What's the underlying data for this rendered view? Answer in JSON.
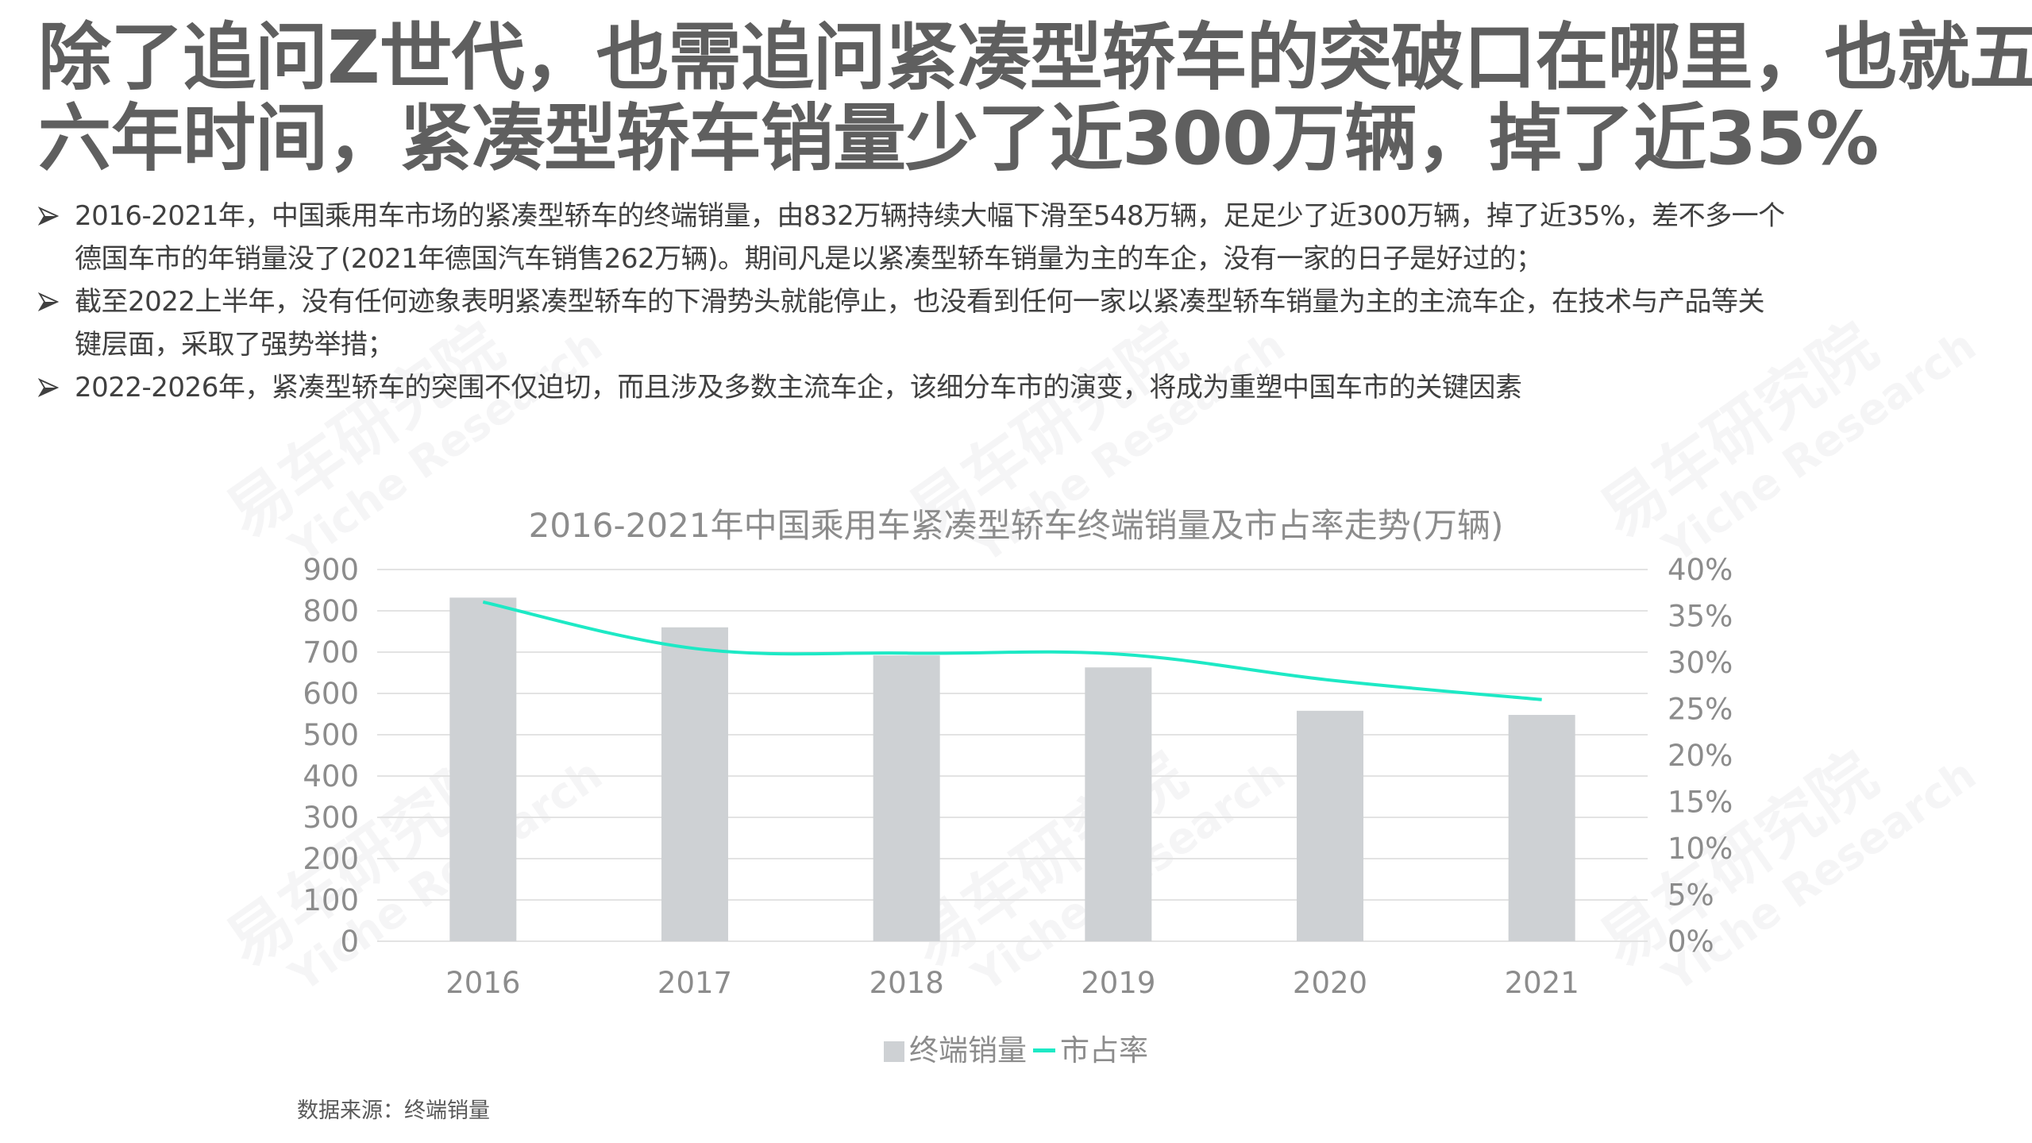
{
  "title": {
    "line1": "除了追问Z世代，也需追问紧凑型轿车的突破口在哪里，也就五",
    "line2": "六年时间，紧凑型轿车销量少了近300万辆，掉了近35%"
  },
  "bullets": [
    {
      "lines": [
        "2016-2021年，中国乘用车市场的紧凑型轿车的终端销量，由832万辆持续大幅下滑至548万辆，足足少了近300万辆，掉了近35%，差不多一个",
        "德国车市的年销量没了(2021年德国汽车销售262万辆)。期间凡是以紧凑型轿车销量为主的车企，没有一家的日子是好过的；"
      ]
    },
    {
      "lines": [
        "截至2022上半年，没有任何迹象表明紧凑型轿车的下滑势头就能停止，也没看到任何一家以紧凑型轿车销量为主的主流车企，在技术与产品等关",
        "键层面，采取了强势举措；"
      ]
    },
    {
      "lines": [
        "2022-2026年，紧凑型轿车的突围不仅迫切，而且涉及多数主流车企，该细分车市的演变，将成为重塑中国车市的关键因素"
      ]
    }
  ],
  "watermark": {
    "cn": "易车研究院",
    "en": "Yiche Research"
  },
  "chart_data": {
    "type": "bar",
    "title": "2016-2021年中国乘用车紧凑型轿车终端销量及市占率走势(万辆)",
    "categories": [
      "2016",
      "2017",
      "2018",
      "2019",
      "2020",
      "2021"
    ],
    "series": [
      {
        "name": "终端销量",
        "type": "bar",
        "axis": "left",
        "color": "#ced1d4",
        "values": [
          832,
          760,
          692,
          663,
          558,
          548
        ]
      },
      {
        "name": "市占率",
        "type": "line",
        "axis": "right",
        "color": "#1de9c5",
        "smooth": true,
        "values": [
          36.5,
          31.5,
          31.0,
          30.9,
          28.1,
          26.0
        ]
      }
    ],
    "left_axis": {
      "ylim": [
        0,
        900
      ],
      "ticks": [
        "0",
        "100",
        "200",
        "300",
        "400",
        "500",
        "600",
        "700",
        "800",
        "900"
      ]
    },
    "right_axis": {
      "ylim": [
        0,
        40
      ],
      "ticks": [
        "0%",
        "5%",
        "10%",
        "15%",
        "20%",
        "25%",
        "30%",
        "35%",
        "40%"
      ]
    },
    "xlabel": "",
    "ylabel": "",
    "grid": true,
    "legend_position": "bottom"
  },
  "legend": {
    "bar_label": "终端销量",
    "line_label": "市占率"
  },
  "source": "数据来源：终端销量"
}
